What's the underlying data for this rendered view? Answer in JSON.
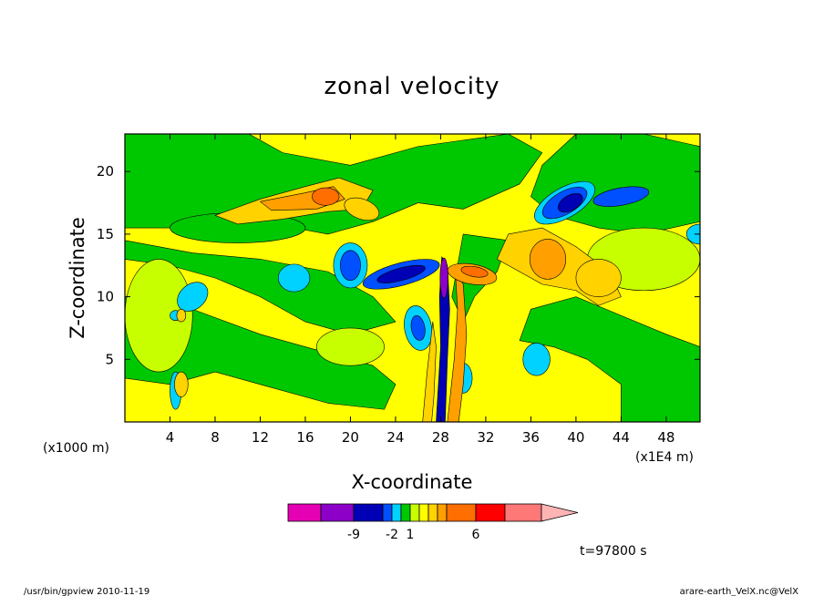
{
  "chart_data": {
    "type": "heatmap",
    "title": "zonal velocity",
    "xlabel": "X-coordinate",
    "ylabel": "Z-coordinate",
    "x_unit_left": "(x1000 m)",
    "x_unit_right": "(x1E4 m)",
    "xlim": [
      0,
      51
    ],
    "ylim": [
      0,
      23
    ],
    "x_ticks": [
      4,
      8,
      12,
      16,
      20,
      24,
      28,
      32,
      36,
      40,
      44,
      48
    ],
    "y_ticks": [
      5,
      10,
      15,
      20
    ],
    "colorbar": {
      "labels": [
        "-9",
        "-2",
        "1",
        "6"
      ],
      "colors": [
        "#e600b4",
        "#8c00c8",
        "#0000b4",
        "#0050ff",
        "#00d2ff",
        "#00c800",
        "#c8ff00",
        "#ffff00",
        "#ffd200",
        "#ffa000",
        "#ff6e00",
        "#ff0000",
        "#ff7878",
        "#ffb4b4"
      ]
    },
    "annotation": "t=97800 s",
    "footer_left": "/usr/bin/gpview   2010-11-19",
    "footer_right": "arare-earth_VelX.nc@VelX",
    "features": [
      {
        "x": 28.2,
        "z": 11.5,
        "value": -9
      },
      {
        "x": 20.0,
        "z": 12.5,
        "value": -6
      },
      {
        "x": 24.5,
        "z": 11.8,
        "value": -6
      },
      {
        "x": 39.0,
        "z": 17.5,
        "value": -7
      },
      {
        "x": 17.5,
        "z": 18.0,
        "value": 5
      },
      {
        "x": 38.5,
        "z": 12.5,
        "value": 3
      },
      {
        "x": 33.0,
        "z": 12.0,
        "value": 4
      },
      {
        "x": 15.0,
        "z": 11.5,
        "value": -2
      },
      {
        "x": 36.5,
        "z": 5.0,
        "value": -2
      },
      {
        "x": 28.5,
        "z": 4.0,
        "value": 4
      }
    ]
  }
}
